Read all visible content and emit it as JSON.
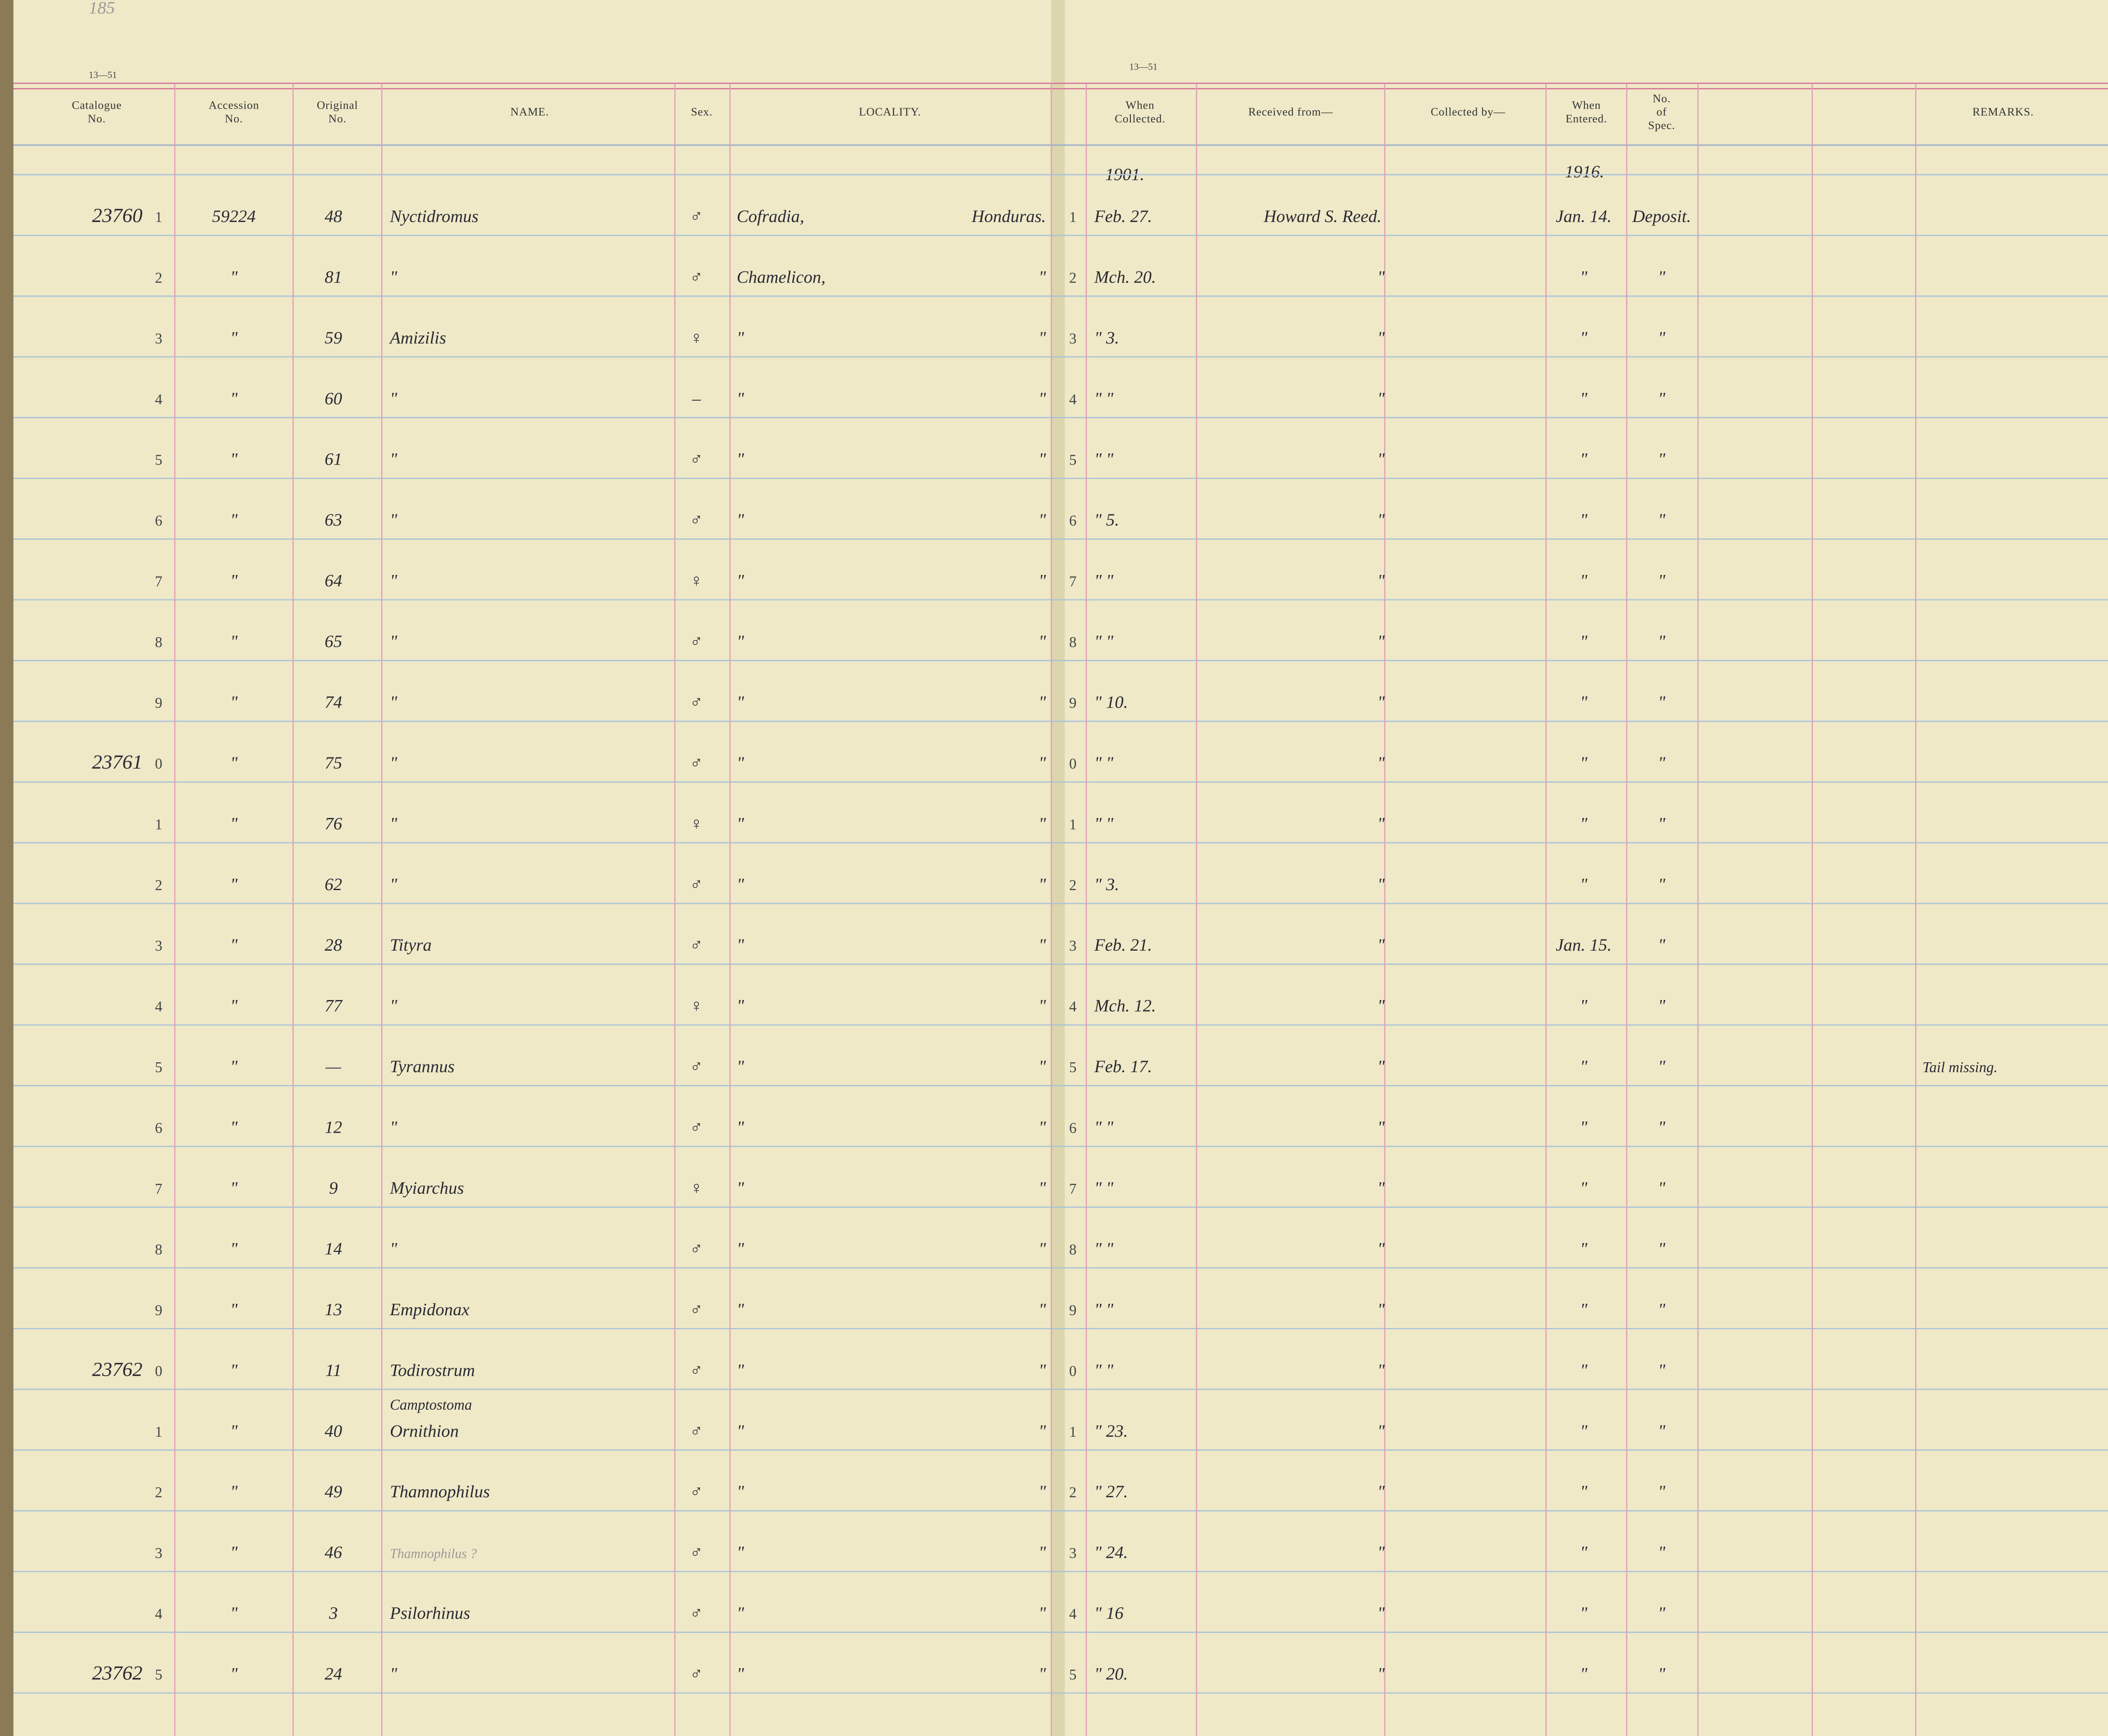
{
  "page_number": "185",
  "page_codes": [
    "13—51",
    "13—51"
  ],
  "headers": [
    [
      "Catalogue",
      "No."
    ],
    [
      "Accession",
      "No."
    ],
    [
      "Original",
      "No."
    ],
    [
      "NAME."
    ],
    [
      "Sex."
    ],
    [
      "LOCALITY."
    ],
    [
      "When",
      "Collected."
    ],
    [
      "Received from—"
    ],
    [
      "Collected by—"
    ],
    [
      "When",
      "Entered."
    ],
    [
      "No.",
      "of",
      "Spec."
    ],
    [
      "REMARKS."
    ]
  ],
  "year_collected": "1901.",
  "year_entered": "1916.",
  "rows": [
    {
      "cat": "23760",
      "n": "1",
      "acc": "59224",
      "orig": "48",
      "name": "Nyctidromus",
      "sex": "♂",
      "loc": "Cofradia,",
      "country": "Honduras.",
      "rn": "1",
      "when": "Feb. 27.",
      "rec": "Howard S. Reed.",
      "entered": "Jan. 14.",
      "spec": "Deposit."
    },
    {
      "n": "2",
      "acc": "\"",
      "orig": "81",
      "name": "\"",
      "sex": "♂",
      "loc": "Chamelicon,",
      "country": "\"",
      "rn": "2",
      "when": "Mch. 20.",
      "rec": "\"",
      "entered": "\"",
      "spec": "\""
    },
    {
      "n": "3",
      "acc": "\"",
      "orig": "59",
      "name": "Amizilis",
      "sex": "♀",
      "loc": "\"",
      "country": "\"",
      "rn": "3",
      "when": "\"  3.",
      "rec": "\"",
      "entered": "\"",
      "spec": "\""
    },
    {
      "n": "4",
      "acc": "\"",
      "orig": "60",
      "name": "\"",
      "sex": "–",
      "loc": "\"",
      "country": "\"",
      "rn": "4",
      "when": "\"  \"",
      "rec": "\"",
      "entered": "\"",
      "spec": "\""
    },
    {
      "n": "5",
      "acc": "\"",
      "orig": "61",
      "name": "\"",
      "sex": "♂",
      "loc": "\"",
      "country": "\"",
      "rn": "5",
      "when": "\"  \"",
      "rec": "\"",
      "entered": "\"",
      "spec": "\""
    },
    {
      "n": "6",
      "acc": "\"",
      "orig": "63",
      "name": "\"",
      "sex": "♂",
      "loc": "\"",
      "country": "\"",
      "rn": "6",
      "when": "\"  5.",
      "rec": "\"",
      "entered": "\"",
      "spec": "\""
    },
    {
      "n": "7",
      "acc": "\"",
      "orig": "64",
      "name": "\"",
      "sex": "♀",
      "loc": "\"",
      "country": "\"",
      "rn": "7",
      "when": "\"  \"",
      "rec": "\"",
      "entered": "\"",
      "spec": "\""
    },
    {
      "n": "8",
      "acc": "\"",
      "orig": "65",
      "name": "\"",
      "sex": "♂",
      "loc": "\"",
      "country": "\"",
      "rn": "8",
      "when": "\"  \"",
      "rec": "\"",
      "entered": "\"",
      "spec": "\""
    },
    {
      "n": "9",
      "acc": "\"",
      "orig": "74",
      "name": "\"",
      "sex": "♂",
      "loc": "\"",
      "country": "\"",
      "rn": "9",
      "when": "\"  10.",
      "rec": "\"",
      "entered": "\"",
      "spec": "\""
    },
    {
      "cat": "23761",
      "n": "0",
      "acc": "\"",
      "orig": "75",
      "name": "\"",
      "sex": "♂",
      "loc": "\"",
      "country": "\"",
      "rn": "0",
      "when": "\"  \"",
      "rec": "\"",
      "entered": "\"",
      "spec": "\""
    },
    {
      "n": "1",
      "acc": "\"",
      "orig": "76",
      "name": "\"",
      "sex": "♀",
      "loc": "\"",
      "country": "\"",
      "rn": "1",
      "when": "\"  \"",
      "rec": "\"",
      "entered": "\"",
      "spec": "\""
    },
    {
      "n": "2",
      "acc": "\"",
      "orig": "62",
      "name": "\"",
      "sex": "♂",
      "loc": "\"",
      "country": "\"",
      "rn": "2",
      "when": "\"  3.",
      "rec": "\"",
      "entered": "\"",
      "spec": "\""
    },
    {
      "n": "3",
      "acc": "\"",
      "orig": "28",
      "name": "Tityra",
      "sex": "♂",
      "loc": "\"",
      "country": "\"",
      "rn": "3",
      "when": "Feb. 21.",
      "rec": "\"",
      "entered": "Jan. 15.",
      "spec": "\""
    },
    {
      "n": "4",
      "acc": "\"",
      "orig": "77",
      "name": "\"",
      "sex": "♀",
      "loc": "\"",
      "country": "\"",
      "rn": "4",
      "when": "Mch. 12.",
      "rec": "\"",
      "entered": "\"",
      "spec": "\""
    },
    {
      "n": "5",
      "acc": "\"",
      "orig": "—",
      "name": "Tyrannus",
      "sex": "♂",
      "loc": "\"",
      "country": "\"",
      "rn": "5",
      "when": "Feb. 17.",
      "rec": "\"",
      "entered": "\"",
      "spec": "\"",
      "remarks": "Tail missing."
    },
    {
      "n": "6",
      "acc": "\"",
      "orig": "12",
      "name": "\"",
      "sex": "♂",
      "loc": "\"",
      "country": "\"",
      "rn": "6",
      "when": "\"  \"",
      "rec": "\"",
      "entered": "\"",
      "spec": "\""
    },
    {
      "n": "7",
      "acc": "\"",
      "orig": "9",
      "name": "Myiarchus",
      "sex": "♀",
      "loc": "\"",
      "country": "\"",
      "rn": "7",
      "when": "\"  \"",
      "rec": "\"",
      "entered": "\"",
      "spec": "\""
    },
    {
      "n": "8",
      "acc": "\"",
      "orig": "14",
      "name": "\"",
      "sex": "♂",
      "loc": "\"",
      "country": "\"",
      "rn": "8",
      "when": "\"  \"",
      "rec": "\"",
      "entered": "\"",
      "spec": "\""
    },
    {
      "n": "9",
      "acc": "\"",
      "orig": "13",
      "name": "Empidonax",
      "sex": "♂",
      "loc": "\"",
      "country": "\"",
      "rn": "9",
      "when": "\"  \"",
      "rec": "\"",
      "entered": "\"",
      "spec": "\""
    },
    {
      "cat": "23762",
      "n": "0",
      "acc": "\"",
      "orig": "11",
      "name": "Todirostrum",
      "sex": "♂",
      "loc": "\"",
      "country": "\"",
      "rn": "0",
      "when": "\"  \"",
      "rec": "\"",
      "entered": "\"",
      "spec": "\""
    },
    {
      "n": "1",
      "acc": "\"",
      "orig": "40",
      "name_note": "Camptostoma",
      "name": "Ornithion",
      "sex": "♂",
      "loc": "\"",
      "country": "\"",
      "rn": "1",
      "when": "\"  23.",
      "rec": "\"",
      "entered": "\"",
      "spec": "\""
    },
    {
      "n": "2",
      "acc": "\"",
      "orig": "49",
      "name": "Thamnophilus",
      "sex": "♂",
      "loc": "\"",
      "country": "\"",
      "rn": "2",
      "when": "\"  27.",
      "rec": "\"",
      "entered": "\"",
      "spec": "\""
    },
    {
      "n": "3",
      "acc": "\"",
      "orig": "46",
      "name_faint": "Thamnophilus ?",
      "sex": "♂",
      "loc": "\"",
      "country": "\"",
      "rn": "3",
      "when": "\"  24.",
      "rec": "\"",
      "entered": "\"",
      "spec": "\""
    },
    {
      "n": "4",
      "acc": "\"",
      "orig": "3",
      "name": "Psilorhinus",
      "sex": "♂",
      "loc": "\"",
      "country": "\"",
      "rn": "4",
      "when": "\"  16",
      "rec": "\"",
      "entered": "\"",
      "spec": "\""
    },
    {
      "cat": "23762",
      "n": "5",
      "acc": "\"",
      "orig": "24",
      "name": "\"",
      "sex": "♂",
      "loc": "\"",
      "country": "\"",
      "rn": "5",
      "when": "\"  20.",
      "rec": "\"",
      "entered": "\"",
      "spec": "\""
    }
  ]
}
